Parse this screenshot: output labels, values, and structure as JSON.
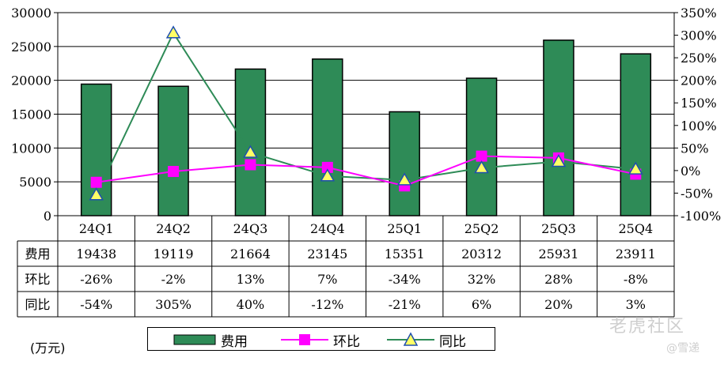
{
  "unit_label": "(万元)",
  "watermark": {
    "brand": "老虎社区",
    "user": "@雪递"
  },
  "colors": {
    "bar": "#2e8b57",
    "hb": "#ff00ff",
    "tb": "#2e8b57",
    "tb_marker": "#ffff66"
  },
  "chart_data": {
    "type": "bar",
    "categories": [
      "24Q1",
      "24Q2",
      "24Q3",
      "24Q4",
      "25Q1",
      "25Q2",
      "25Q3",
      "25Q4"
    ],
    "left_axis": {
      "min": 0,
      "max": 30000,
      "step": 5000,
      "ticks": [
        "0",
        "5000",
        "10000",
        "15000",
        "20000",
        "25000",
        "30000"
      ]
    },
    "right_axis": {
      "min": -100,
      "max": 350,
      "step": 50,
      "ticks": [
        "-100%",
        "-50%",
        "0%",
        "50%",
        "100%",
        "150%",
        "200%",
        "250%",
        "300%",
        "350%"
      ]
    },
    "series": [
      {
        "name": "费用",
        "type": "bar",
        "axis": "left",
        "values": [
          19438,
          19119,
          21664,
          23145,
          15351,
          20312,
          25931,
          23911
        ]
      },
      {
        "name": "环比",
        "type": "line",
        "axis": "right",
        "values": [
          -26,
          -2,
          13,
          7,
          -34,
          32,
          28,
          -8
        ]
      },
      {
        "name": "同比",
        "type": "line",
        "axis": "right",
        "values": [
          -54,
          305,
          40,
          -12,
          -21,
          6,
          20,
          3
        ]
      }
    ],
    "table": {
      "rows": [
        {
          "label": "费用",
          "cells": [
            "19438",
            "19119",
            "21664",
            "23145",
            "15351",
            "20312",
            "25931",
            "23911"
          ]
        },
        {
          "label": "环比",
          "cells": [
            "-26%",
            "-2%",
            "13%",
            "7%",
            "-34%",
            "32%",
            "28%",
            "-8%"
          ]
        },
        {
          "label": "同比",
          "cells": [
            "-54%",
            "305%",
            "40%",
            "-12%",
            "-21%",
            "6%",
            "20%",
            "3%"
          ]
        }
      ]
    },
    "legend": [
      "费用",
      "环比",
      "同比"
    ],
    "grid": true
  }
}
